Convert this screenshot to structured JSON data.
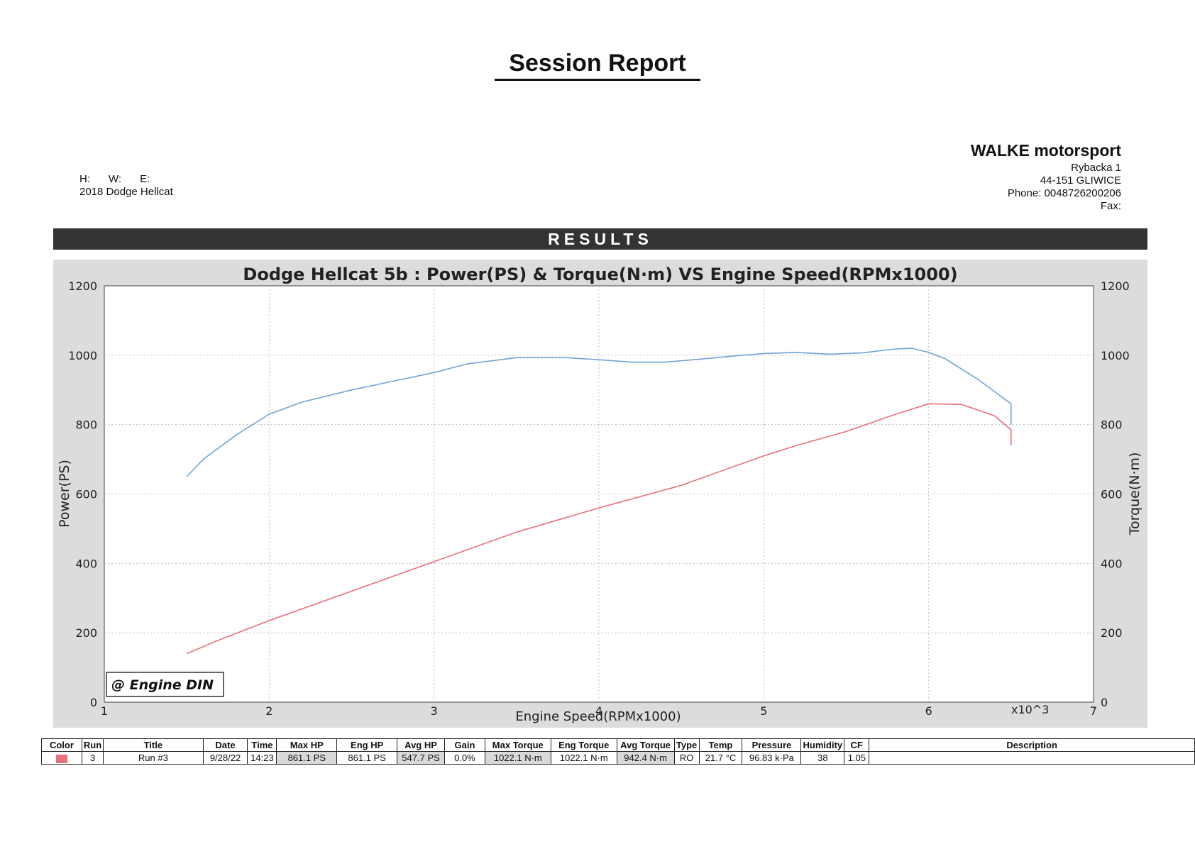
{
  "report": {
    "title": "Session Report",
    "hwe": [
      "H:",
      "W:",
      "E:"
    ],
    "vehicle": "2018 Dodge  Hellcat"
  },
  "shop": {
    "name": "WALKE motorsport",
    "street": "Rybacka 1",
    "city": "44-151 GLIWICE",
    "phone": "Phone: 0048726200206",
    "fax": "Fax:"
  },
  "results_label": "RESULTS",
  "chart_data": {
    "type": "line",
    "title": "Dodge Hellcat 5b : Power(PS) & Torque(N·m) VS Engine Speed(RPMx1000)",
    "xlabel": "Engine Speed(RPMx1000)",
    "ylabel": "Power(PS)",
    "y2label": "Torque(N·m)",
    "x_multiplier": "x10^3",
    "xlim": [
      1,
      7
    ],
    "ylim": [
      0,
      1200
    ],
    "y2lim": [
      0,
      1200
    ],
    "xticks": [
      1,
      2,
      3,
      4,
      5,
      6,
      7
    ],
    "yticks": [
      0,
      200,
      400,
      600,
      800,
      1000,
      1200
    ],
    "grid": true,
    "annotation": "@ Engine DIN",
    "series": [
      {
        "axis": "right",
        "color": "#6fa3d6",
        "points": [
          [
            1.5,
            650
          ],
          [
            1.6,
            700
          ],
          [
            1.8,
            770
          ],
          [
            2.0,
            830
          ],
          [
            2.2,
            865
          ],
          [
            2.5,
            900
          ],
          [
            2.8,
            930
          ],
          [
            3.0,
            950
          ],
          [
            3.2,
            975
          ],
          [
            3.5,
            993
          ],
          [
            3.8,
            993
          ],
          [
            4.0,
            987
          ],
          [
            4.2,
            980
          ],
          [
            4.4,
            980
          ],
          [
            4.6,
            988
          ],
          [
            4.8,
            997
          ],
          [
            5.0,
            1005
          ],
          [
            5.2,
            1008
          ],
          [
            5.4,
            1003
          ],
          [
            5.6,
            1007
          ],
          [
            5.8,
            1018
          ],
          [
            5.9,
            1020
          ],
          [
            6.0,
            1008
          ],
          [
            6.1,
            990
          ],
          [
            6.3,
            930
          ],
          [
            6.5,
            860
          ],
          [
            6.5,
            800
          ]
        ]
      },
      {
        "axis": "left",
        "color": "#e8707a",
        "points": [
          [
            1.5,
            140
          ],
          [
            1.7,
            180
          ],
          [
            2.0,
            235
          ],
          [
            2.5,
            320
          ],
          [
            3.0,
            405
          ],
          [
            3.5,
            490
          ],
          [
            4.0,
            560
          ],
          [
            4.5,
            625
          ],
          [
            5.0,
            710
          ],
          [
            5.2,
            740
          ],
          [
            5.5,
            780
          ],
          [
            5.8,
            830
          ],
          [
            6.0,
            860
          ],
          [
            6.2,
            858
          ],
          [
            6.4,
            825
          ],
          [
            6.5,
            785
          ],
          [
            6.5,
            740
          ]
        ]
      }
    ]
  },
  "table": {
    "headers": [
      "Color",
      "Run",
      "Title",
      "Date",
      "Time",
      "Max HP",
      "Eng HP",
      "Avg HP",
      "Gain",
      "Max Torque",
      "Eng Torque",
      "Avg Torque",
      "Type",
      "Temp",
      "Pressure",
      "Humidity",
      "CF",
      "Description"
    ],
    "row": [
      "",
      "3",
      "Run #3",
      "9/28/22",
      "14:23",
      "861.1 PS",
      "861.1 PS",
      "547.7 PS",
      "0.0%",
      "1022.1 N·m",
      "1022.1 N·m",
      "942.4 N·m",
      "RO",
      "21.7 °C",
      "96.83 k·Pa",
      "38",
      "1.05",
      ""
    ]
  }
}
